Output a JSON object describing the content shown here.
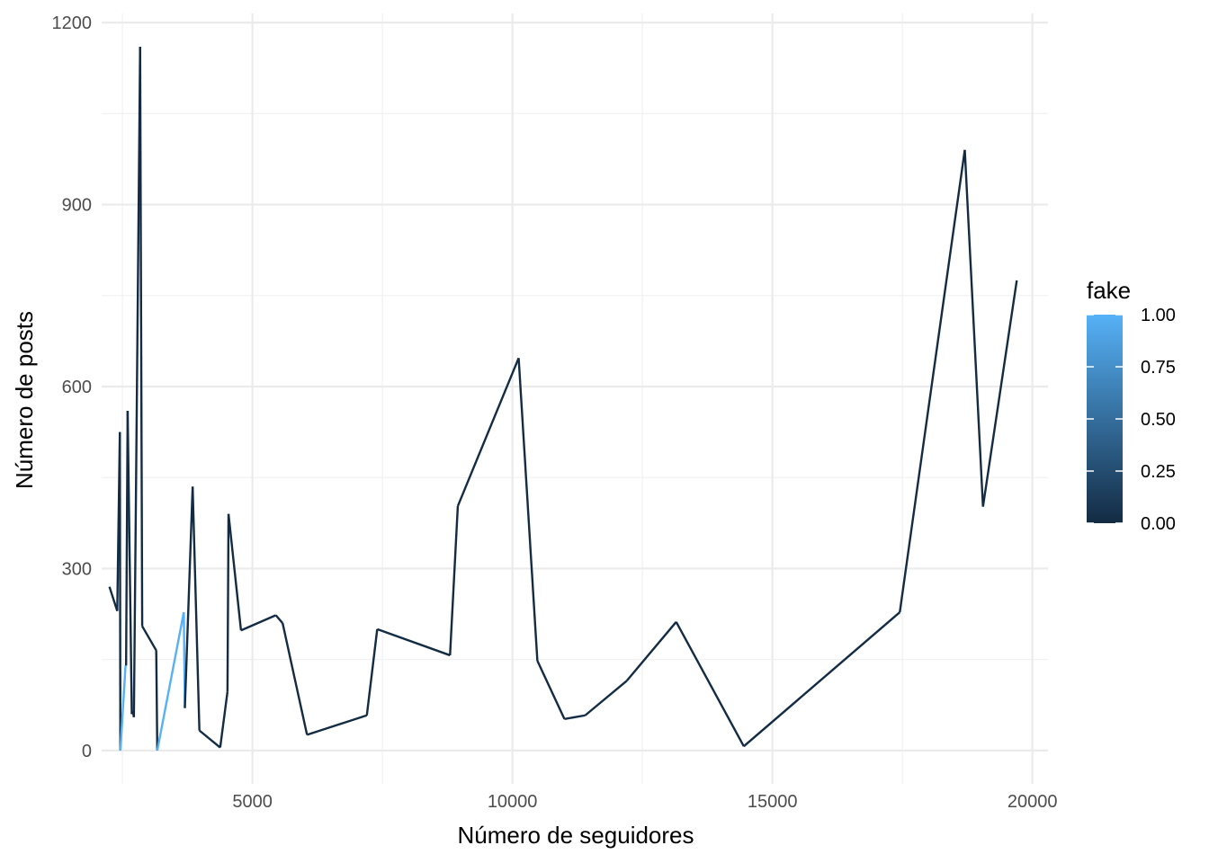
{
  "chart_data": {
    "type": "line",
    "title": "",
    "xlabel": "Número de seguidores",
    "ylabel": "Número de posts",
    "xlim": [
      2100,
      20300
    ],
    "ylim": [
      -55,
      1215
    ],
    "x_ticks": [
      5000,
      10000,
      15000,
      20000
    ],
    "x_tick_labels": [
      "5000",
      "10000",
      "15000",
      "20000"
    ],
    "x_minor_ticks": [
      2500,
      7500,
      12500,
      17500
    ],
    "y_ticks": [
      0,
      300,
      600,
      900,
      1200
    ],
    "y_tick_labels": [
      "0",
      "300",
      "600",
      "900",
      "1200"
    ],
    "y_minor_ticks": [
      150,
      450,
      750,
      1050
    ],
    "grid": true,
    "legend": {
      "title": "fake",
      "placement": "right",
      "type": "colorbar",
      "ticks": [
        "0.00",
        "0.25",
        "0.50",
        "0.75",
        "1.00"
      ],
      "tick_values": [
        0,
        0.25,
        0.5,
        0.75,
        1
      ],
      "color_low": "#132B43",
      "color_high": "#56B1F7"
    },
    "series": [
      {
        "color_by": "fake",
        "points": [
          {
            "x": 2250,
            "y": 270,
            "fake": 0
          },
          {
            "x": 2400,
            "y": 230,
            "fake": 0
          },
          {
            "x": 2450,
            "y": 525,
            "fake": 0
          },
          {
            "x": 2460,
            "y": 0,
            "fake": 1
          },
          {
            "x": 2560,
            "y": 140,
            "fake": 1
          },
          {
            "x": 2570,
            "y": 140,
            "fake": 0
          },
          {
            "x": 2600,
            "y": 560,
            "fake": 0
          },
          {
            "x": 2680,
            "y": 60,
            "fake": 0
          },
          {
            "x": 2700,
            "y": 65,
            "fake": 0
          },
          {
            "x": 2720,
            "y": 55,
            "fake": 0
          },
          {
            "x": 2840,
            "y": 1160,
            "fake": 0
          },
          {
            "x": 2880,
            "y": 205,
            "fake": 0
          },
          {
            "x": 3150,
            "y": 165,
            "fake": 0
          },
          {
            "x": 3170,
            "y": 0,
            "fake": 1
          },
          {
            "x": 3680,
            "y": 228,
            "fake": 1
          },
          {
            "x": 3700,
            "y": 70,
            "fake": 0
          },
          {
            "x": 3850,
            "y": 435,
            "fake": 0
          },
          {
            "x": 3980,
            "y": 33,
            "fake": 0
          },
          {
            "x": 4380,
            "y": 5,
            "fake": 0
          },
          {
            "x": 4520,
            "y": 97,
            "fake": 0
          },
          {
            "x": 4540,
            "y": 390,
            "fake": 0
          },
          {
            "x": 4780,
            "y": 198,
            "fake": 0
          },
          {
            "x": 5450,
            "y": 223,
            "fake": 0
          },
          {
            "x": 5580,
            "y": 210,
            "fake": 0
          },
          {
            "x": 6050,
            "y": 26,
            "fake": 0
          },
          {
            "x": 7200,
            "y": 58,
            "fake": 0
          },
          {
            "x": 7400,
            "y": 200,
            "fake": 0
          },
          {
            "x": 8800,
            "y": 157,
            "fake": 0
          },
          {
            "x": 8950,
            "y": 403,
            "fake": 0
          },
          {
            "x": 10120,
            "y": 647,
            "fake": 0
          },
          {
            "x": 10480,
            "y": 148,
            "fake": 0
          },
          {
            "x": 11000,
            "y": 52,
            "fake": 0
          },
          {
            "x": 11400,
            "y": 58,
            "fake": 0
          },
          {
            "x": 12200,
            "y": 115,
            "fake": 0
          },
          {
            "x": 13150,
            "y": 212,
            "fake": 0
          },
          {
            "x": 14450,
            "y": 7,
            "fake": 0
          },
          {
            "x": 17450,
            "y": 228,
            "fake": 0
          },
          {
            "x": 18700,
            "y": 990,
            "fake": 0
          },
          {
            "x": 19050,
            "y": 402,
            "fake": 0
          },
          {
            "x": 19700,
            "y": 775,
            "fake": 0
          }
        ]
      }
    ]
  }
}
